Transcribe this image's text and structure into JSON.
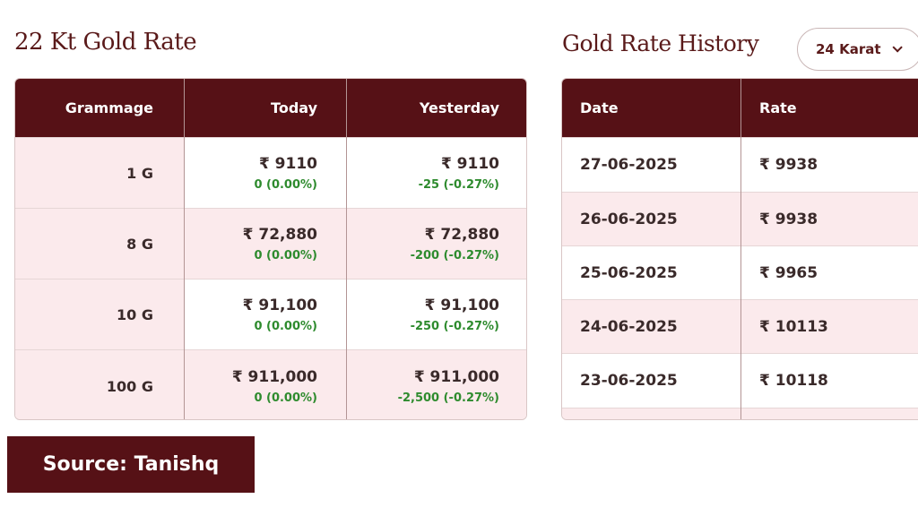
{
  "left_title": "22 Kt Gold Rate",
  "right_title": "Gold Rate History",
  "karat_select": {
    "value": "24 Karat"
  },
  "rate_table": {
    "headers": [
      "Grammage",
      "Today",
      "Yesterday"
    ],
    "rows": [
      {
        "gram": "1 G",
        "today_price": "₹ 9110",
        "today_change": "0 (0.00%)",
        "yest_price": "₹ 9110",
        "yest_change": "-25 (-0.27%)"
      },
      {
        "gram": "8 G",
        "today_price": "₹ 72,880",
        "today_change": "0 (0.00%)",
        "yest_price": "₹ 72,880",
        "yest_change": "-200 (-0.27%)"
      },
      {
        "gram": "10 G",
        "today_price": "₹ 91,100",
        "today_change": "0 (0.00%)",
        "yest_price": "₹ 91,100",
        "yest_change": "-250 (-0.27%)"
      },
      {
        "gram": "100 G",
        "today_price": "₹ 911,000",
        "today_change": "0 (0.00%)",
        "yest_price": "₹ 911,000",
        "yest_change": "-2,500 (-0.27%)"
      }
    ]
  },
  "history_table": {
    "headers": [
      "Date",
      "Rate"
    ],
    "rows": [
      {
        "date": "27-06-2025",
        "rate": "₹ 9938"
      },
      {
        "date": "26-06-2025",
        "rate": "₹ 9938"
      },
      {
        "date": "25-06-2025",
        "rate": "₹ 9965"
      },
      {
        "date": "24-06-2025",
        "rate": "₹ 10113"
      },
      {
        "date": "23-06-2025",
        "rate": "₹ 10118"
      }
    ]
  },
  "source_label": "Source: Tanishq",
  "colors": {
    "header_bg": "#561116",
    "row_pink": "#fbeaec",
    "change_green": "#2e8b2e",
    "title": "#5a1a1a"
  }
}
